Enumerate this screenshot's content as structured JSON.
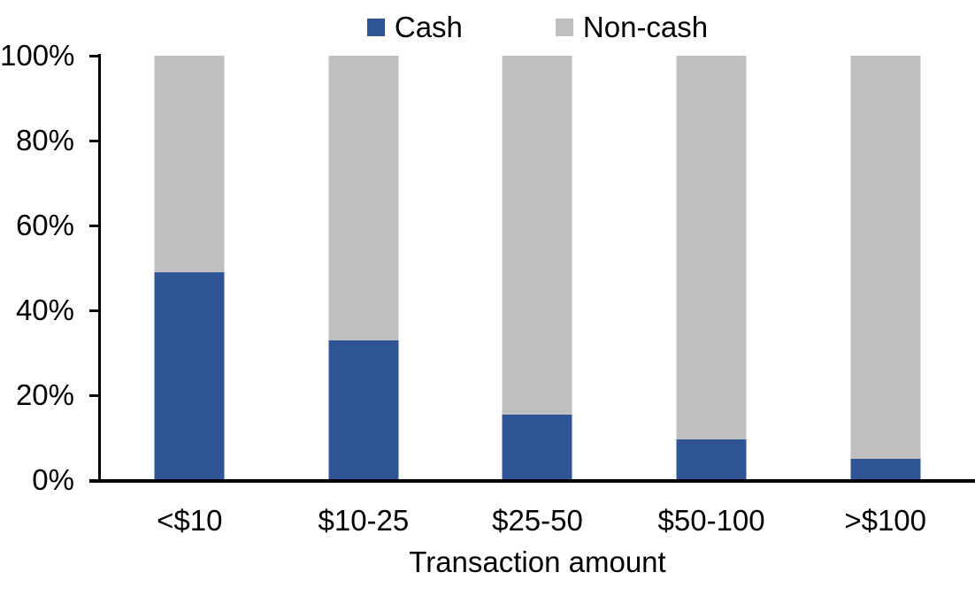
{
  "chart_data": {
    "type": "bar",
    "stacked": true,
    "percent_stacked": true,
    "title": "",
    "xlabel": "Transaction amount",
    "ylabel": "",
    "ylim": [
      0,
      100
    ],
    "yticks": [
      "0%",
      "20%",
      "40%",
      "60%",
      "80%",
      "100%"
    ],
    "grid": false,
    "legend_position": "top",
    "categories": [
      "<$10",
      "$10-25",
      "$25-50",
      "$50-100",
      ">$100"
    ],
    "series": [
      {
        "name": "Cash",
        "color": "#2F5597",
        "values": [
          49,
          33,
          15.5,
          9.5,
          5
        ]
      },
      {
        "name": "Non-cash",
        "color": "#BFBFBF",
        "values": [
          51,
          67,
          84.5,
          90.5,
          95
        ]
      }
    ],
    "colors": {
      "axis": "#000000",
      "text": "#000000",
      "background": "#FFFFFF"
    }
  }
}
